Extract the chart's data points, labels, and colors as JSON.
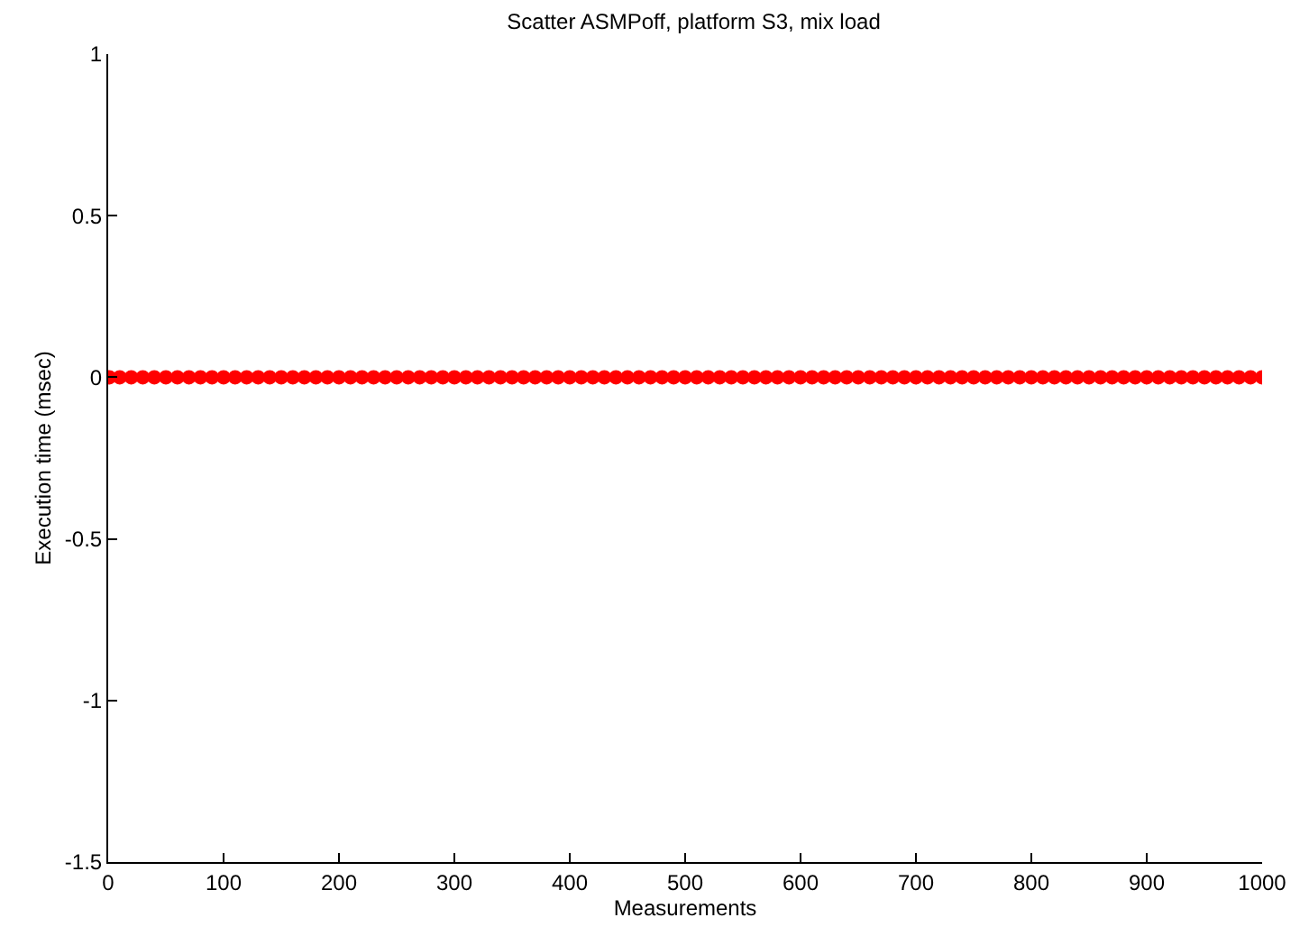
{
  "chart_data": {
    "type": "scatter",
    "title": "Scatter ASMPoff, platform S3, mix load",
    "xlabel": "Measurements",
    "ylabel": "Execution time (msec)",
    "x": [
      1,
      10,
      20,
      30,
      40,
      50,
      60,
      70,
      80,
      90,
      100,
      110,
      120,
      130,
      140,
      150,
      160,
      170,
      180,
      190,
      200,
      210,
      220,
      230,
      240,
      250,
      260,
      270,
      280,
      290,
      300,
      310,
      320,
      330,
      340,
      350,
      360,
      370,
      380,
      390,
      400,
      410,
      420,
      430,
      440,
      450,
      460,
      470,
      480,
      490,
      500,
      510,
      520,
      530,
      540,
      550,
      560,
      570,
      580,
      590,
      600,
      610,
      620,
      630,
      640,
      650,
      660,
      670,
      680,
      690,
      700,
      710,
      720,
      730,
      740,
      750,
      760,
      770,
      780,
      790,
      800,
      810,
      820,
      830,
      840,
      850,
      860,
      870,
      880,
      890,
      900,
      910,
      920,
      930,
      940,
      950,
      960,
      970,
      980,
      990,
      1000
    ],
    "series": [
      {
        "color": "#ff0000",
        "values": [
          0,
          0,
          0,
          0,
          0,
          0,
          0,
          0,
          0,
          0,
          0,
          0,
          0,
          0,
          0,
          0,
          0,
          0,
          0,
          0,
          0,
          0,
          0,
          0,
          0,
          0,
          0,
          0,
          0,
          0,
          0,
          0,
          0,
          0,
          0,
          0,
          0,
          0,
          0,
          0,
          0,
          0,
          0,
          0,
          0,
          0,
          0,
          0,
          0,
          0,
          0,
          0,
          0,
          0,
          0,
          0,
          0,
          0,
          0,
          0,
          0,
          0,
          0,
          0,
          0,
          0,
          0,
          0,
          0,
          0,
          0,
          0,
          0,
          0,
          0,
          0,
          0,
          0,
          0,
          0,
          0,
          0,
          0,
          0,
          0,
          0,
          0,
          0,
          0,
          0,
          0,
          0,
          0,
          0,
          0,
          0,
          0,
          0,
          0,
          0,
          0
        ]
      }
    ],
    "xlim": [
      0,
      1000
    ],
    "xticks": [
      0,
      100,
      200,
      300,
      400,
      500,
      600,
      700,
      800,
      900,
      1000
    ],
    "ylim": [
      -1.5,
      1
    ],
    "yticks": [
      -1.5,
      -1,
      -0.5,
      0,
      0.5,
      1
    ],
    "marker": "circle"
  }
}
